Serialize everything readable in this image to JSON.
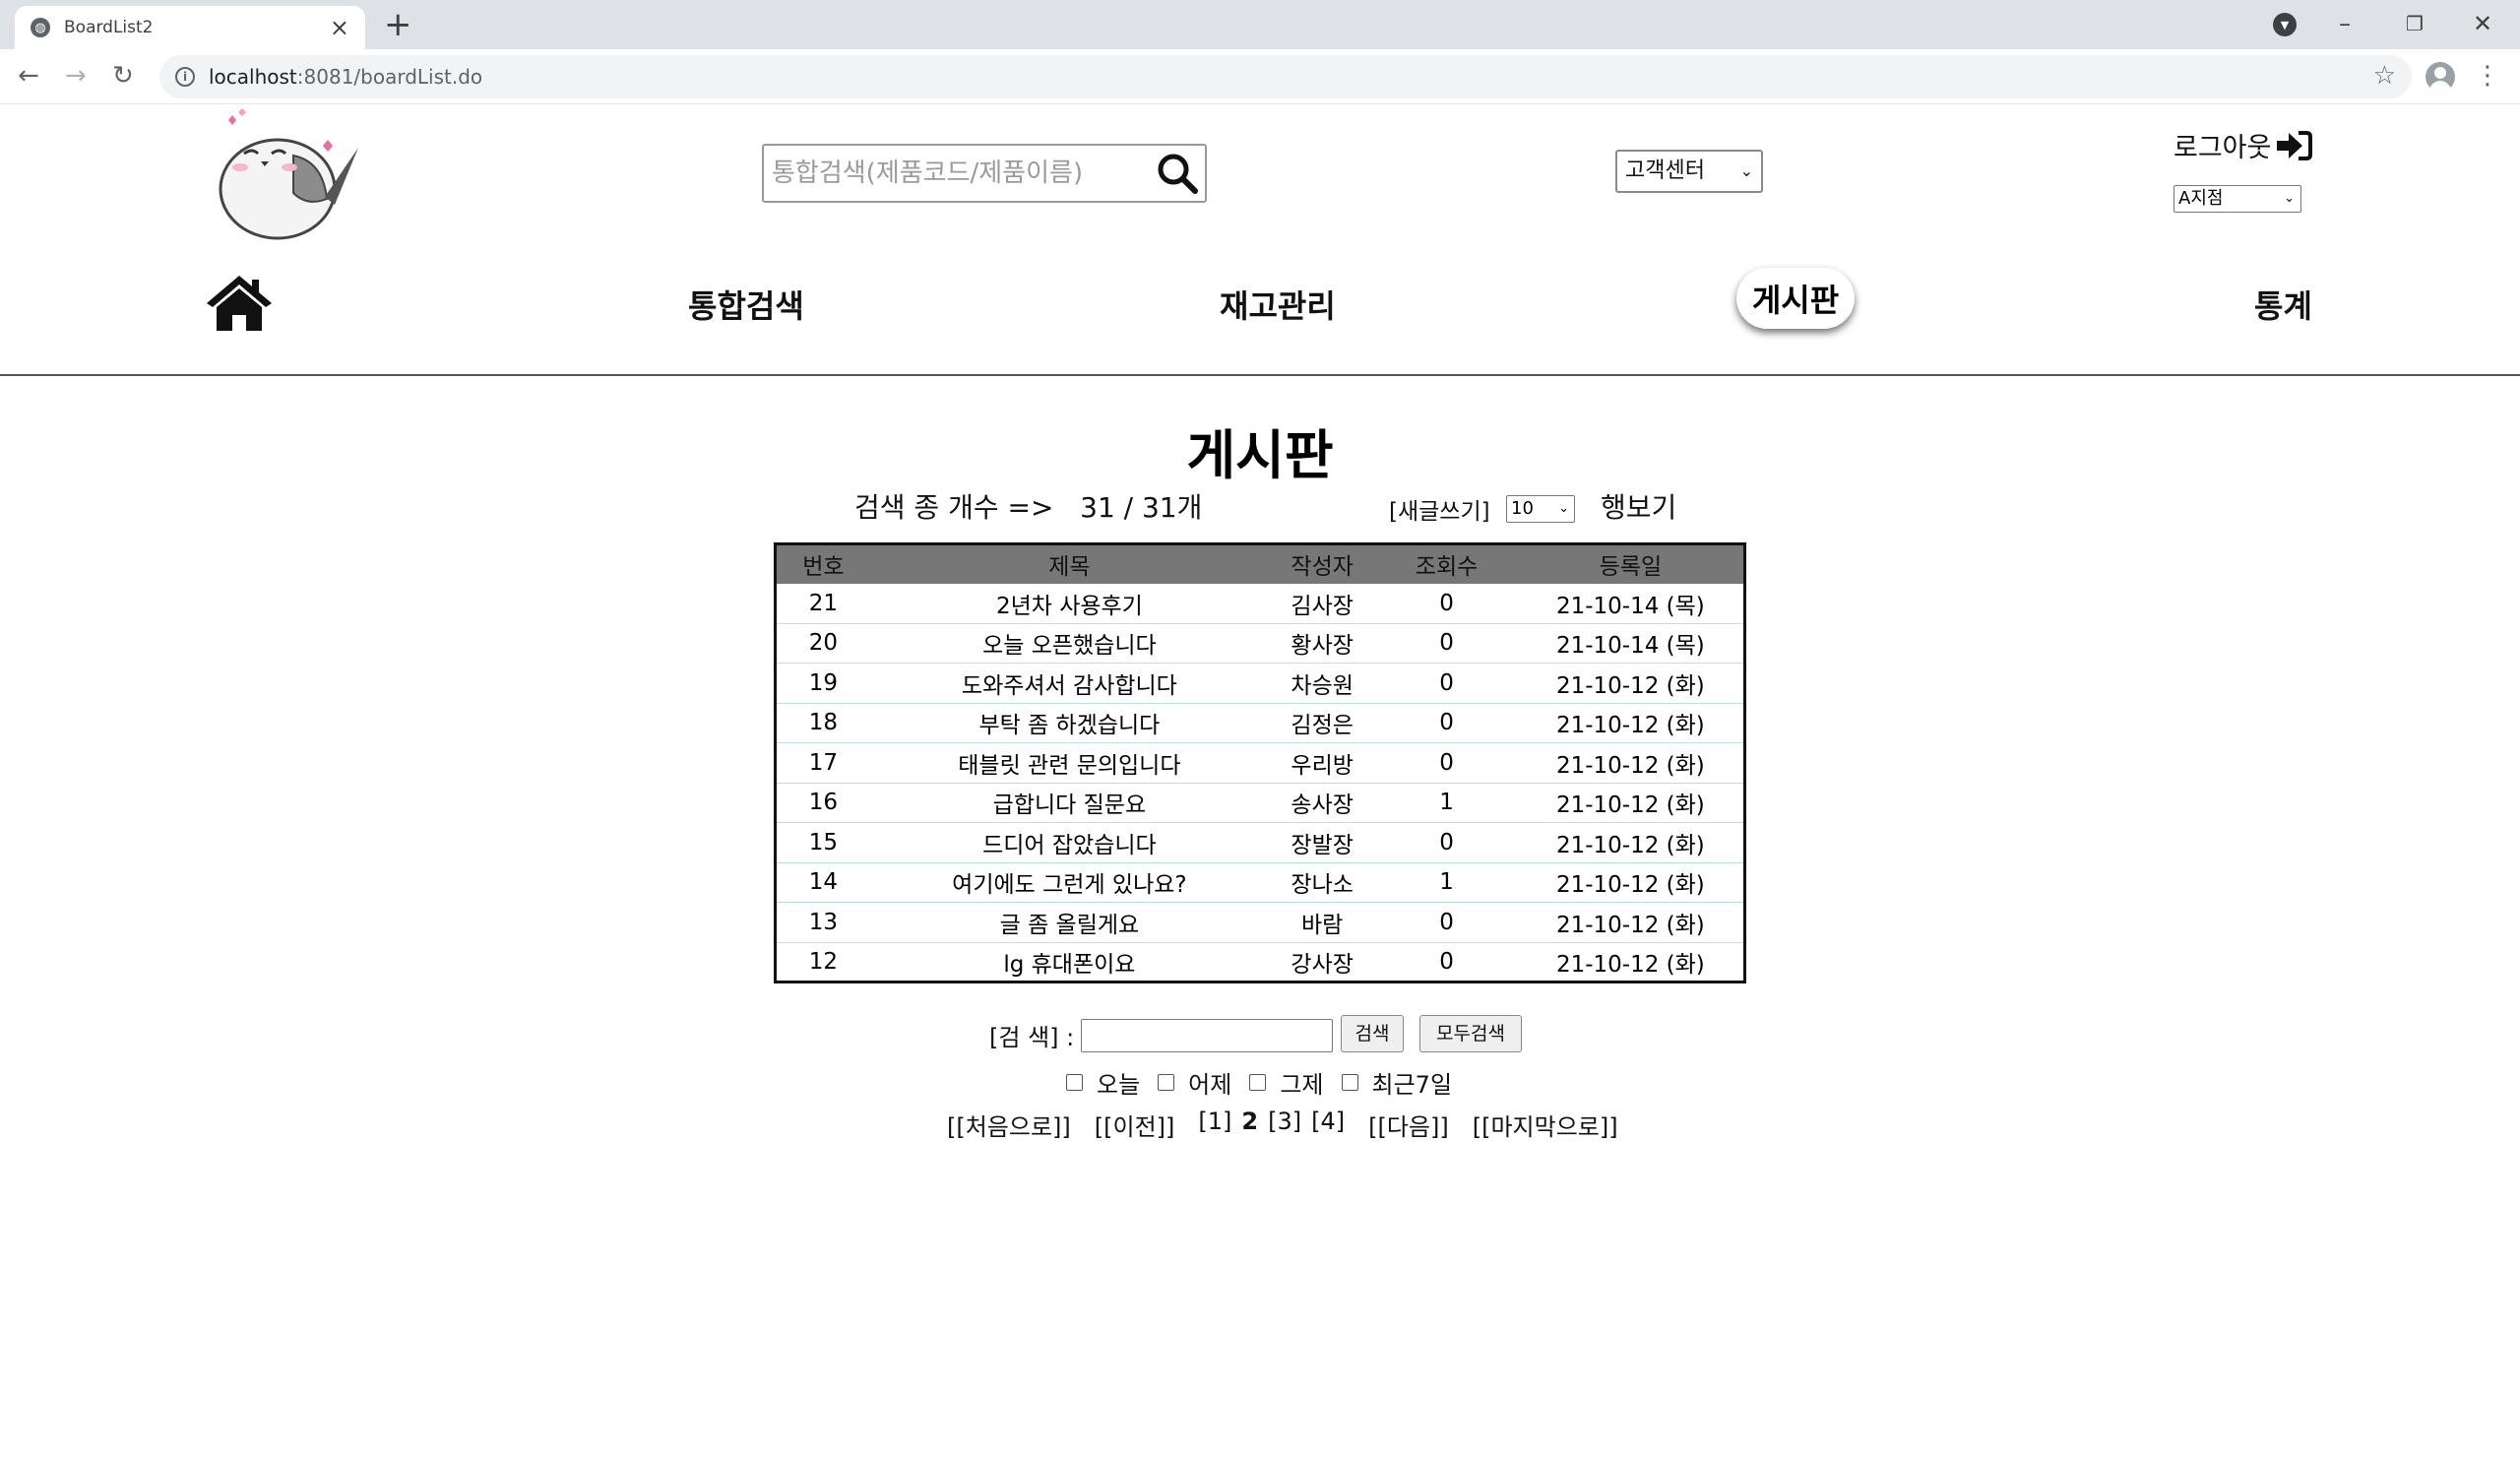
{
  "browser": {
    "tab_title": "BoardList2",
    "url_host": "localhost",
    "url_path": ":8081/boardList.do"
  },
  "header": {
    "search_placeholder": "통합검색(제품코드/제품이름)",
    "customer_center": "고객센터",
    "logout": "로그아웃",
    "branch": "A지점"
  },
  "nav": {
    "search": "통합검색",
    "inventory": "재고관리",
    "board": "게시판",
    "stats": "통계"
  },
  "board": {
    "title": "게시판",
    "count_text": "검색 종 개수 =>   31 / 31개",
    "write_link": "[새글쓰기]",
    "rows_per_page": "10",
    "rows_label": "행보기",
    "columns": [
      "번호",
      "제목",
      "작성자",
      "조회수",
      "등록일"
    ],
    "rows": [
      {
        "no": "21",
        "title": "2년차 사용후기",
        "writer": "김사장",
        "views": "0",
        "date": "21-10-14 (목)"
      },
      {
        "no": "20",
        "title": "오늘 오픈했습니다",
        "writer": "황사장",
        "views": "0",
        "date": "21-10-14 (목)"
      },
      {
        "no": "19",
        "title": "도와주셔서 감사합니다",
        "writer": "차승원",
        "views": "0",
        "date": "21-10-12 (화)"
      },
      {
        "no": "18",
        "title": "부탁 좀 하겠습니다",
        "writer": "김정은",
        "views": "0",
        "date": "21-10-12 (화)"
      },
      {
        "no": "17",
        "title": "태블릿 관련 문의입니다",
        "writer": "우리방",
        "views": "0",
        "date": "21-10-12 (화)"
      },
      {
        "no": "16",
        "title": "급합니다 질문요",
        "writer": "송사장",
        "views": "1",
        "date": "21-10-12 (화)"
      },
      {
        "no": "15",
        "title": "드디어 잡았습니다",
        "writer": "장발장",
        "views": "0",
        "date": "21-10-12 (화)"
      },
      {
        "no": "14",
        "title": "여기에도 그런게 있나요?",
        "writer": "장나소",
        "views": "1",
        "date": "21-10-12 (화)"
      },
      {
        "no": "13",
        "title": "글 좀 올릴게요",
        "writer": "바람",
        "views": "0",
        "date": "21-10-12 (화)"
      },
      {
        "no": "12",
        "title": "lg 휴대폰이요",
        "writer": "강사장",
        "views": "0",
        "date": "21-10-12 (화)"
      }
    ]
  },
  "search": {
    "label": "[검 색] :",
    "search_button": "검색",
    "all_button": "모두검색",
    "periods": [
      "오늘",
      "어제",
      "그제",
      "최근7일"
    ]
  },
  "paging": {
    "first": "[[처음으로]]",
    "prev": "[[이전]]",
    "pages": [
      "[1]",
      "2",
      "[3]",
      "[4]"
    ],
    "next": "[[다음]]",
    "last": "[[마지막으로]]"
  }
}
